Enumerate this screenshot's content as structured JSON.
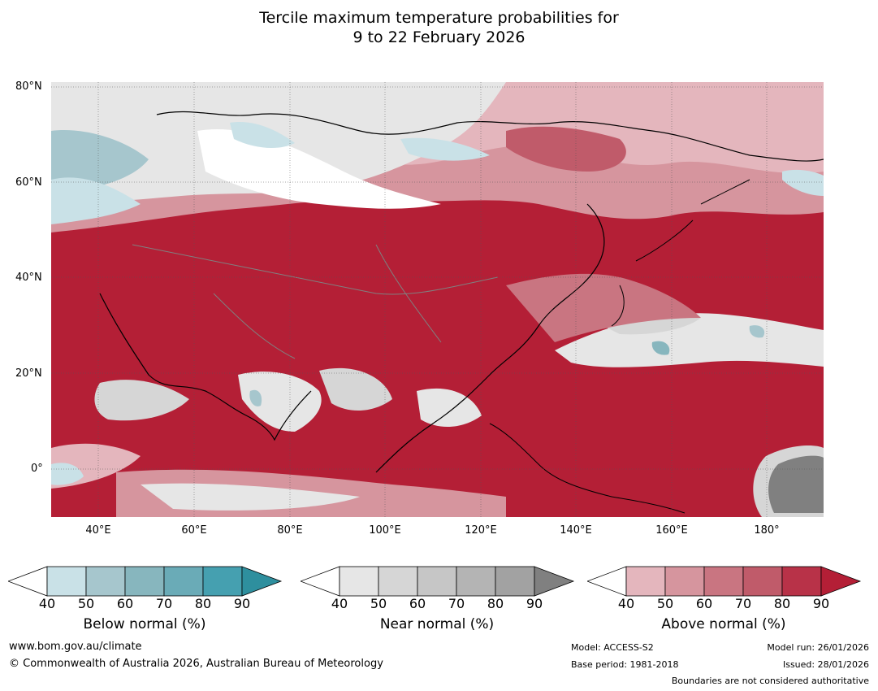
{
  "title_line1": "Tercile maximum temperature probabilities for",
  "title_line2": "9 to 22 February 2026",
  "lat_labels": [
    "80°N",
    "60°N",
    "40°N",
    "20°N",
    "0°"
  ],
  "lon_labels": [
    "40°E",
    "60°E",
    "80°E",
    "100°E",
    "120°E",
    "140°E",
    "160°E",
    "180°"
  ],
  "colorbars": [
    {
      "title": "Below normal (%)",
      "ticks": [
        "40",
        "50",
        "60",
        "70",
        "80",
        "90"
      ],
      "colors": [
        "#c9e1e7",
        "#a6c6cd",
        "#87b6be",
        "#6aabb7",
        "#45a0b0",
        "#2e8f9e"
      ]
    },
    {
      "title": "Near normal (%)",
      "ticks": [
        "40",
        "50",
        "60",
        "70",
        "80",
        "90"
      ],
      "colors": [
        "#e6e6e6",
        "#d6d6d6",
        "#c6c6c6",
        "#b4b4b4",
        "#a2a2a2",
        "#808080"
      ]
    },
    {
      "title": "Above normal (%)",
      "ticks": [
        "40",
        "50",
        "60",
        "70",
        "80",
        "90"
      ],
      "colors": [
        "#e4b6bd",
        "#d6959e",
        "#c97581",
        "#c05b6a",
        "#b83248",
        "#b41f36"
      ]
    }
  ],
  "footer": {
    "website": "www.bom.gov.au/climate",
    "copyright": "© Commonwealth of Australia 2026, Australian Bureau of Meteorology",
    "model": "Model: ACCESS-S2",
    "base_period": "Base period: 1981-2018",
    "model_run": "Model run: 26/01/2026",
    "issued": "Issued: 28/01/2026",
    "boundaries": "Boundaries are not considered authoritative"
  }
}
